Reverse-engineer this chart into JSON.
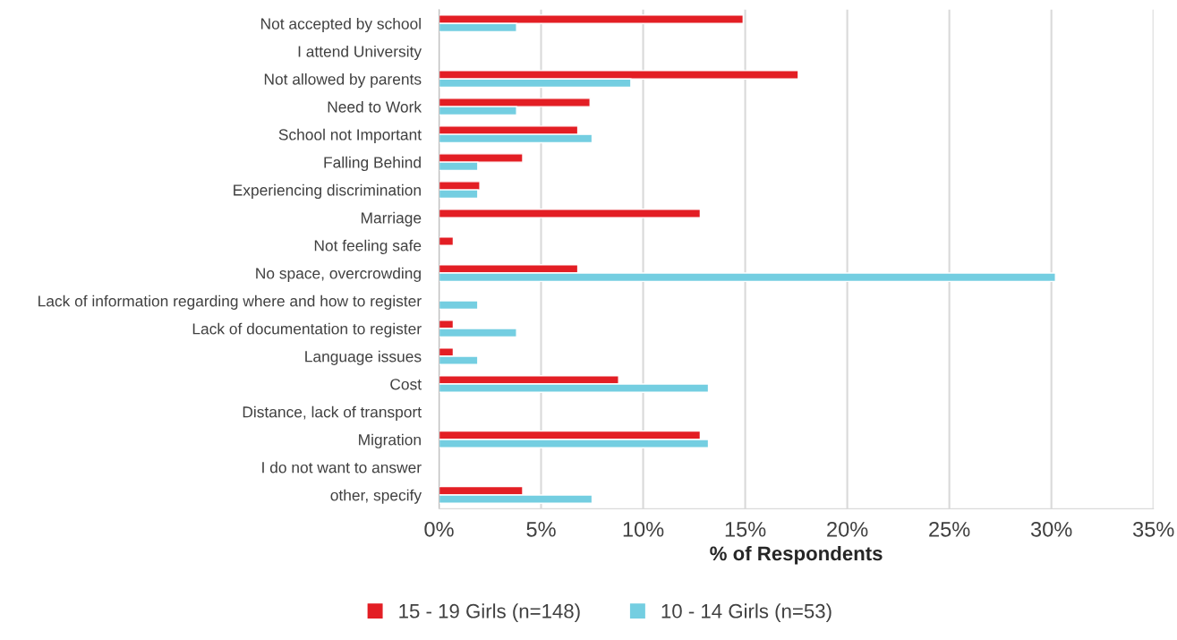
{
  "chart_data": {
    "type": "bar",
    "orientation": "horizontal",
    "xlabel": "% of Respondents",
    "categories": [
      "Not accepted by school",
      "I attend University",
      "Not allowed by parents",
      "Need to Work",
      "School not Important",
      "Falling Behind",
      "Experiencing discrimination",
      "Marriage",
      "Not feeling safe",
      "No space, overcrowding",
      "Lack of information regarding where and how to register",
      "Lack of documentation to register",
      "Language issues",
      "Cost",
      "Distance, lack of transport",
      "Migration",
      "I do not want to answer",
      "other, specify"
    ],
    "series": [
      {
        "name": "15 - 19 Girls (n=148)",
        "color": "#e31e24",
        "values": [
          14.9,
          null,
          17.6,
          7.4,
          6.8,
          4.1,
          2.0,
          12.8,
          0.7,
          6.8,
          null,
          0.7,
          0.7,
          8.8,
          null,
          12.8,
          null,
          4.1
        ]
      },
      {
        "name": "10 - 14 Girls (n=53)",
        "color": "#74cee1",
        "values": [
          3.8,
          null,
          9.4,
          3.8,
          7.5,
          1.9,
          1.9,
          null,
          null,
          30.2,
          1.9,
          3.8,
          1.9,
          13.2,
          null,
          13.2,
          null,
          7.5
        ]
      }
    ],
    "xlim": [
      0,
      35
    ],
    "xticks": [
      {
        "value": 0,
        "label": "0%"
      },
      {
        "value": 5,
        "label": "5%"
      },
      {
        "value": 10,
        "label": "10%"
      },
      {
        "value": 15,
        "label": "15%"
      },
      {
        "value": 20,
        "label": "20%"
      },
      {
        "value": 25,
        "label": "25%"
      },
      {
        "value": 30,
        "label": "30%"
      },
      {
        "value": 35,
        "label": "35%"
      }
    ],
    "grid": "x",
    "legend": "bottom"
  }
}
